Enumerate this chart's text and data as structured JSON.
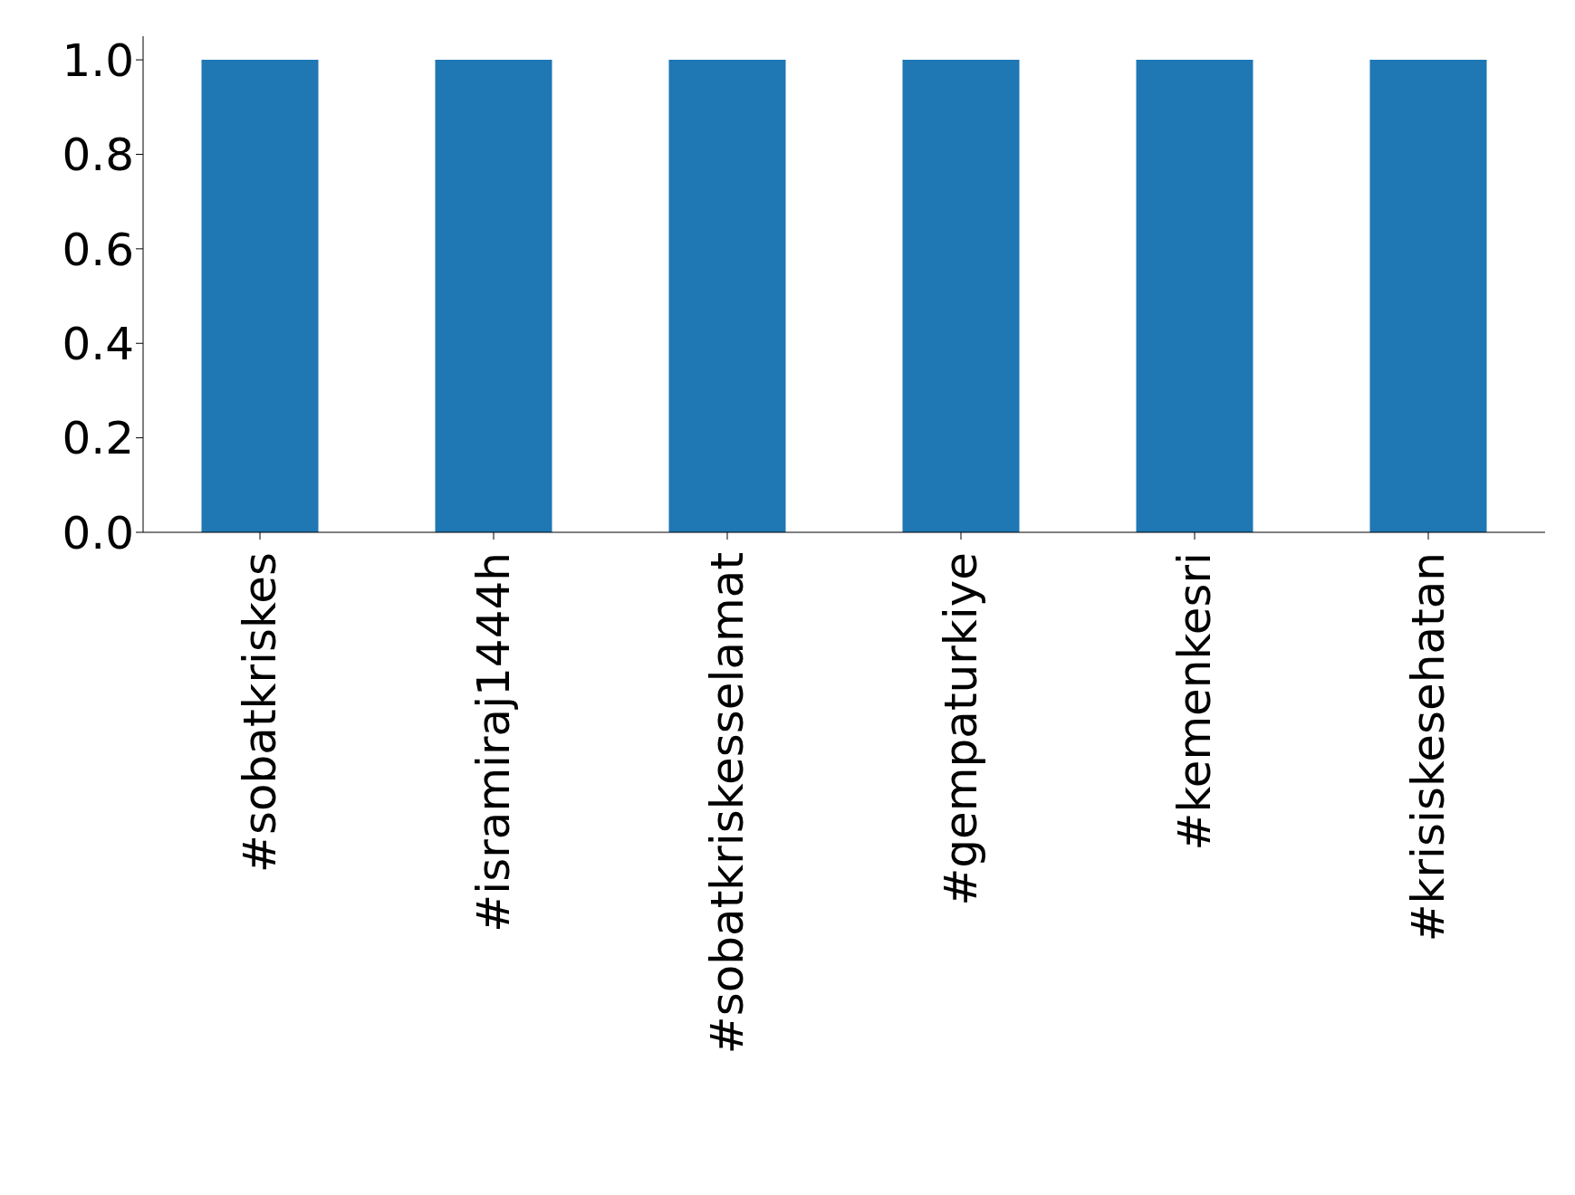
{
  "chart_data": {
    "type": "bar",
    "categories": [
      "#sobatkriskes",
      "#isramiraj1444h",
      "#sobatkriskesselamat",
      "#gempaturkiye",
      "#kemenkesri",
      "#krisiskesehatan"
    ],
    "values": [
      1,
      1,
      1,
      1,
      1,
      1
    ],
    "color": "#1f77b4",
    "ylim": [
      0,
      1.05
    ],
    "yticks": [
      {
        "value": 0,
        "label": "0.0"
      },
      {
        "value": 0.2,
        "label": "0.2"
      },
      {
        "value": 0.4,
        "label": "0.4"
      },
      {
        "value": 0.6,
        "label": "0.6"
      },
      {
        "value": 0.8,
        "label": "0.8"
      },
      {
        "value": 1,
        "label": "1.0"
      }
    ],
    "grid": false,
    "legend": false
  }
}
